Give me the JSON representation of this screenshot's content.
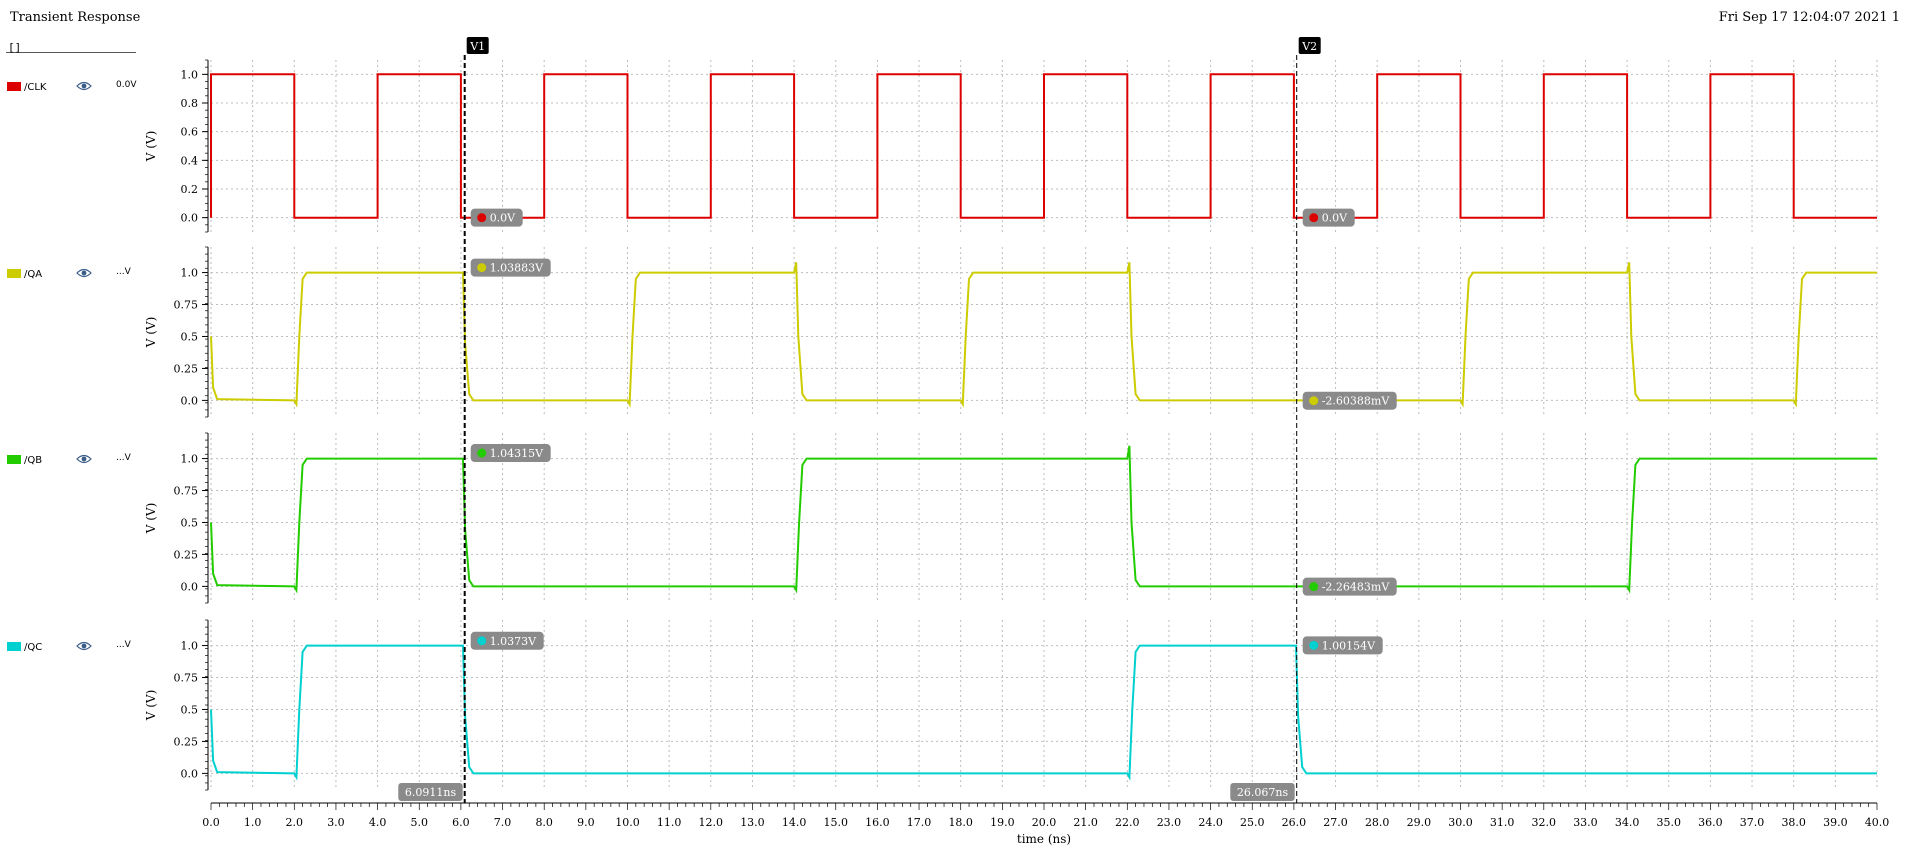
{
  "window": {
    "title": "Transient Response",
    "datestamp": "Fri Sep 17 12:04:07 2021  1"
  },
  "search": {
    "value": "[]"
  },
  "colors": {
    "CLK": "#dd0000",
    "QA": "#cccc00",
    "QB": "#22cc00",
    "QC": "#00d0d0",
    "grid": "#bdbdbd",
    "cursor": "#000000",
    "flag": "#8a8a8a"
  },
  "legend": [
    {
      "name": "/CLK",
      "value": "0.0V",
      "icon": "eye-icon",
      "color": "#dd0000"
    },
    {
      "name": "/QA",
      "value": "...V",
      "icon": "eye-icon",
      "color": "#cccc00"
    },
    {
      "name": "/QB",
      "value": "...V",
      "icon": "eye-icon",
      "color": "#22cc00"
    },
    {
      "name": "/QC",
      "value": "...V",
      "icon": "eye-icon",
      "color": "#00d0d0"
    }
  ],
  "cursors": [
    {
      "label": "V1",
      "time": 6.0911,
      "time_readout": "6.0911ns",
      "readouts": [
        "0.0V",
        "1.03883V",
        "1.04315V",
        "1.0373V"
      ]
    },
    {
      "label": "V2",
      "time": 26.067,
      "time_readout": "26.067ns",
      "readouts": [
        "0.0V",
        "-2.60388mV",
        "-2.26483mV",
        "1.00154V"
      ]
    }
  ],
  "chart_data": {
    "type": "line",
    "xlabel": "time (ns)",
    "xlim": [
      0,
      40
    ],
    "xticks": [
      "0.0",
      "1.0",
      "2.0",
      "3.0",
      "4.0",
      "5.0",
      "6.0",
      "7.0",
      "8.0",
      "9.0",
      "10.0",
      "11.0",
      "12.0",
      "13.0",
      "14.0",
      "15.0",
      "16.0",
      "17.0",
      "18.0",
      "19.0",
      "20.0",
      "21.0",
      "22.0",
      "23.0",
      "24.0",
      "25.0",
      "26.0",
      "27.0",
      "28.0",
      "29.0",
      "30.0",
      "31.0",
      "32.0",
      "33.0",
      "34.0",
      "35.0",
      "36.0",
      "37.0",
      "38.0",
      "39.0",
      "40.0"
    ],
    "grid": true,
    "panels": [
      {
        "name": "/CLK",
        "ylabel": "V (V)",
        "ylim": [
          -0.1,
          1.1
        ],
        "yticks": [
          [
            "0.0",
            0
          ],
          [
            "0.2",
            0.2
          ],
          [
            "0.4",
            0.4
          ],
          [
            "0.6",
            0.6
          ],
          [
            "0.8",
            0.8
          ],
          [
            "1.0",
            1.0
          ]
        ],
        "points": [
          [
            0,
            0
          ],
          [
            0,
            1
          ],
          [
            2,
            1
          ],
          [
            2,
            0
          ],
          [
            4,
            0
          ],
          [
            4,
            1
          ],
          [
            6,
            1
          ],
          [
            6,
            0
          ],
          [
            8,
            0
          ],
          [
            8,
            1
          ],
          [
            10,
            1
          ],
          [
            10,
            0
          ],
          [
            12,
            0
          ],
          [
            12,
            1
          ],
          [
            14,
            1
          ],
          [
            14,
            0
          ],
          [
            16,
            0
          ],
          [
            16,
            1
          ],
          [
            18,
            1
          ],
          [
            18,
            0
          ],
          [
            20,
            0
          ],
          [
            20,
            1
          ],
          [
            22,
            1
          ],
          [
            22,
            0
          ],
          [
            24,
            0
          ],
          [
            24,
            1
          ],
          [
            26,
            1
          ],
          [
            26,
            0
          ],
          [
            28,
            0
          ],
          [
            28,
            1
          ],
          [
            30,
            1
          ],
          [
            30,
            0
          ],
          [
            32,
            0
          ],
          [
            32,
            1
          ],
          [
            34,
            1
          ],
          [
            34,
            0
          ],
          [
            36,
            0
          ],
          [
            36,
            1
          ],
          [
            38,
            1
          ],
          [
            38,
            0
          ],
          [
            40,
            0
          ]
        ]
      },
      {
        "name": "/QA",
        "ylabel": "V (V)",
        "ylim": [
          -0.13,
          1.2
        ],
        "yticks": [
          [
            "0.0",
            0
          ],
          [
            "0.25",
            0.25
          ],
          [
            "0.5",
            0.5
          ],
          [
            "0.75",
            0.75
          ],
          [
            "1.0",
            1.0
          ]
        ],
        "points": [
          [
            0,
            0.5
          ],
          [
            0.05,
            0.1
          ],
          [
            0.15,
            0.01
          ],
          [
            2.0,
            0.0
          ],
          [
            2.05,
            -0.03
          ],
          [
            2.12,
            0.5
          ],
          [
            2.2,
            0.95
          ],
          [
            2.3,
            1.0
          ],
          [
            6.05,
            1.0
          ],
          [
            6.1,
            0.45
          ],
          [
            6.2,
            0.05
          ],
          [
            6.3,
            0.0
          ],
          [
            10.0,
            0.0
          ],
          [
            10.05,
            -0.03
          ],
          [
            10.12,
            0.5
          ],
          [
            10.2,
            0.95
          ],
          [
            10.3,
            1.0
          ],
          [
            14.0,
            1.0
          ],
          [
            14.05,
            1.08
          ],
          [
            14.1,
            0.5
          ],
          [
            14.2,
            0.05
          ],
          [
            14.3,
            0.0
          ],
          [
            18.0,
            0.0
          ],
          [
            18.05,
            -0.03
          ],
          [
            18.12,
            0.5
          ],
          [
            18.2,
            0.95
          ],
          [
            18.3,
            1.0
          ],
          [
            22.0,
            1.0
          ],
          [
            22.05,
            1.08
          ],
          [
            22.1,
            0.5
          ],
          [
            22.2,
            0.05
          ],
          [
            22.3,
            0.0
          ],
          [
            30.0,
            0.0
          ],
          [
            30.05,
            -0.03
          ],
          [
            30.12,
            0.5
          ],
          [
            30.2,
            0.95
          ],
          [
            30.3,
            1.0
          ],
          [
            34.0,
            1.0
          ],
          [
            34.05,
            1.08
          ],
          [
            34.1,
            0.5
          ],
          [
            34.2,
            0.05
          ],
          [
            34.3,
            0.0
          ],
          [
            38.0,
            0.0
          ],
          [
            38.05,
            -0.03
          ],
          [
            38.12,
            0.5
          ],
          [
            38.2,
            0.95
          ],
          [
            38.3,
            1.0
          ],
          [
            40,
            1.0
          ]
        ]
      },
      {
        "name": "/QB",
        "ylabel": "V (V)",
        "ylim": [
          -0.13,
          1.2
        ],
        "yticks": [
          [
            "0.0",
            0
          ],
          [
            "0.25",
            0.25
          ],
          [
            "0.5",
            0.5
          ],
          [
            "0.75",
            0.75
          ],
          [
            "1.0",
            1.0
          ]
        ],
        "points": [
          [
            0,
            0.5
          ],
          [
            0.05,
            0.1
          ],
          [
            0.15,
            0.01
          ],
          [
            2.0,
            0.0
          ],
          [
            2.05,
            -0.03
          ],
          [
            2.12,
            0.5
          ],
          [
            2.2,
            0.95
          ],
          [
            2.3,
            1.0
          ],
          [
            6.05,
            1.0
          ],
          [
            6.1,
            0.45
          ],
          [
            6.2,
            0.05
          ],
          [
            6.3,
            0.0
          ],
          [
            14.0,
            0.0
          ],
          [
            14.05,
            -0.03
          ],
          [
            14.12,
            0.5
          ],
          [
            14.2,
            0.95
          ],
          [
            14.3,
            1.0
          ],
          [
            22.0,
            1.0
          ],
          [
            22.05,
            1.1
          ],
          [
            22.1,
            0.5
          ],
          [
            22.2,
            0.05
          ],
          [
            22.3,
            0.0
          ],
          [
            34.0,
            0.0
          ],
          [
            34.05,
            -0.03
          ],
          [
            34.12,
            0.5
          ],
          [
            34.2,
            0.95
          ],
          [
            34.3,
            1.0
          ],
          [
            40,
            1.0
          ]
        ]
      },
      {
        "name": "/QC",
        "ylabel": "V (V)",
        "ylim": [
          -0.13,
          1.2
        ],
        "yticks": [
          [
            "0.0",
            0
          ],
          [
            "0.25",
            0.25
          ],
          [
            "0.5",
            0.5
          ],
          [
            "0.75",
            0.75
          ],
          [
            "1.0",
            1.0
          ]
        ],
        "points": [
          [
            0,
            0.5
          ],
          [
            0.05,
            0.1
          ],
          [
            0.15,
            0.01
          ],
          [
            2.0,
            0.0
          ],
          [
            2.05,
            -0.03
          ],
          [
            2.12,
            0.5
          ],
          [
            2.2,
            0.95
          ],
          [
            2.3,
            1.0
          ],
          [
            6.05,
            1.0
          ],
          [
            6.1,
            0.45
          ],
          [
            6.2,
            0.05
          ],
          [
            6.3,
            0.0
          ],
          [
            22.0,
            0.0
          ],
          [
            22.05,
            -0.03
          ],
          [
            22.12,
            0.5
          ],
          [
            22.2,
            0.95
          ],
          [
            22.3,
            1.0
          ],
          [
            26.05,
            1.0
          ],
          [
            26.1,
            0.45
          ],
          [
            26.2,
            0.05
          ],
          [
            26.3,
            0.0
          ],
          [
            40,
            0.0
          ]
        ]
      }
    ]
  }
}
